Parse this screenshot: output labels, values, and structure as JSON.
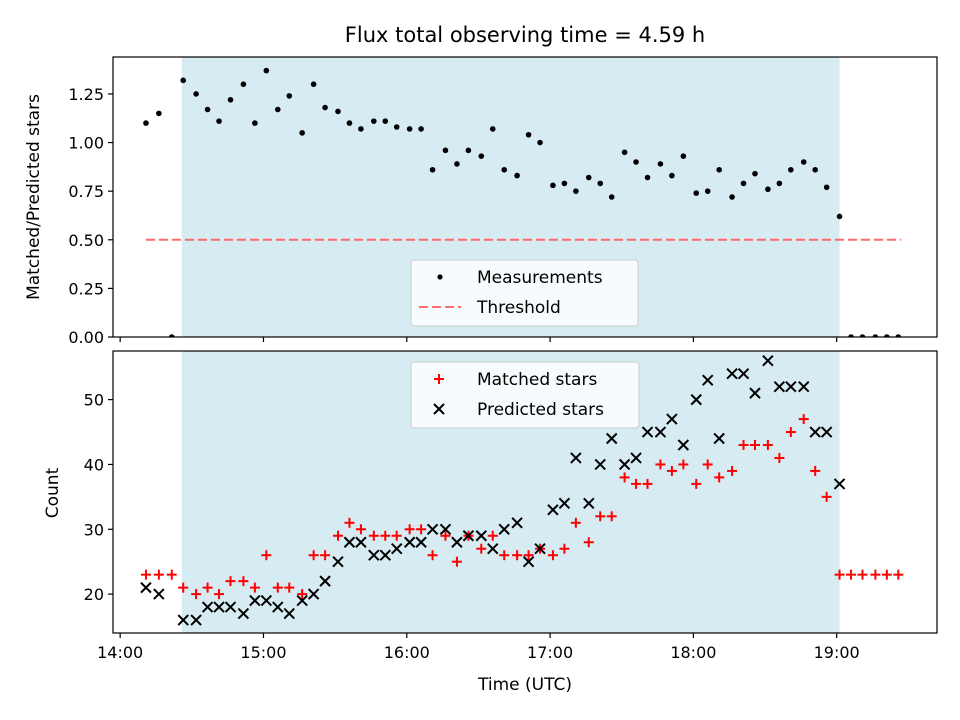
{
  "chart_data": {
    "title": "Flux total observing time = 4.59 h",
    "xlabel": "Time (UTC)",
    "x_unit": "hours since 14:00 UTC",
    "xlim": [
      -0.05,
      5.7
    ],
    "x_ticks": [
      {
        "value": 0,
        "label": "14:00"
      },
      {
        "value": 1,
        "label": "15:00"
      },
      {
        "value": 2,
        "label": "16:00"
      },
      {
        "value": 3,
        "label": "17:00"
      },
      {
        "value": 4,
        "label": "18:00"
      },
      {
        "value": 5,
        "label": "19:00"
      }
    ],
    "observing_span": {
      "start": 0.43,
      "end": 5.02,
      "color": "#add8e6"
    },
    "panels": [
      {
        "id": "ratio",
        "type": "scatter",
        "ylabel": "Matched/Predicted stars",
        "ylim": [
          0,
          1.44
        ],
        "y_ticks": [
          {
            "value": 0,
            "label": "0.00"
          },
          {
            "value": 0.25,
            "label": "0.25"
          },
          {
            "value": 0.5,
            "label": "0.50"
          },
          {
            "value": 0.75,
            "label": "0.75"
          },
          {
            "value": 1.0,
            "label": "1.00"
          },
          {
            "value": 1.25,
            "label": "1.25"
          }
        ],
        "threshold": {
          "label": "Threshold",
          "value": 0.5,
          "x_start": 0.18,
          "x_end": 5.45,
          "color": "#ff6b6b"
        },
        "measurements_label": "Measurements",
        "measurements": [
          [
            0.18,
            1.1
          ],
          [
            0.27,
            1.15
          ],
          [
            0.36,
            0.0
          ],
          [
            0.44,
            1.32
          ],
          [
            0.53,
            1.25
          ],
          [
            0.61,
            1.17
          ],
          [
            0.69,
            1.11
          ],
          [
            0.77,
            1.22
          ],
          [
            0.86,
            1.3
          ],
          [
            0.94,
            1.1
          ],
          [
            1.02,
            1.37
          ],
          [
            1.1,
            1.17
          ],
          [
            1.18,
            1.24
          ],
          [
            1.27,
            1.05
          ],
          [
            1.35,
            1.3
          ],
          [
            1.43,
            1.18
          ],
          [
            1.52,
            1.16
          ],
          [
            1.6,
            1.1
          ],
          [
            1.68,
            1.07
          ],
          [
            1.77,
            1.11
          ],
          [
            1.85,
            1.11
          ],
          [
            1.93,
            1.08
          ],
          [
            2.02,
            1.07
          ],
          [
            2.1,
            1.07
          ],
          [
            2.18,
            0.86
          ],
          [
            2.27,
            0.96
          ],
          [
            2.35,
            0.89
          ],
          [
            2.43,
            0.96
          ],
          [
            2.52,
            0.93
          ],
          [
            2.6,
            1.07
          ],
          [
            2.68,
            0.86
          ],
          [
            2.77,
            0.83
          ],
          [
            2.85,
            1.04
          ],
          [
            2.93,
            1.0
          ],
          [
            3.02,
            0.78
          ],
          [
            3.1,
            0.79
          ],
          [
            3.18,
            0.75
          ],
          [
            3.27,
            0.82
          ],
          [
            3.35,
            0.79
          ],
          [
            3.43,
            0.72
          ],
          [
            3.52,
            0.95
          ],
          [
            3.6,
            0.9
          ],
          [
            3.68,
            0.82
          ],
          [
            3.77,
            0.89
          ],
          [
            3.85,
            0.83
          ],
          [
            3.93,
            0.93
          ],
          [
            4.02,
            0.74
          ],
          [
            4.1,
            0.75
          ],
          [
            4.18,
            0.86
          ],
          [
            4.27,
            0.72
          ],
          [
            4.35,
            0.79
          ],
          [
            4.43,
            0.84
          ],
          [
            4.52,
            0.76
          ],
          [
            4.6,
            0.79
          ],
          [
            4.68,
            0.86
          ],
          [
            4.77,
            0.9
          ],
          [
            4.85,
            0.86
          ],
          [
            4.93,
            0.77
          ],
          [
            5.02,
            0.62
          ],
          [
            5.1,
            0.0
          ],
          [
            5.18,
            0.0
          ],
          [
            5.27,
            0.0
          ],
          [
            5.35,
            0.0
          ],
          [
            5.43,
            0.0
          ]
        ],
        "legend_position": "lower-center"
      },
      {
        "id": "count",
        "type": "scatter",
        "ylabel": "Count",
        "ylim": [
          14,
          57.5
        ],
        "y_ticks": [
          {
            "value": 20,
            "label": "20"
          },
          {
            "value": 30,
            "label": "30"
          },
          {
            "value": 40,
            "label": "40"
          },
          {
            "value": 50,
            "label": "50"
          }
        ],
        "series": [
          {
            "name": "Matched stars",
            "marker": "+",
            "color": "#ff0000",
            "points": [
              [
                0.18,
                23
              ],
              [
                0.27,
                23
              ],
              [
                0.36,
                23
              ],
              [
                0.44,
                21
              ],
              [
                0.53,
                20
              ],
              [
                0.61,
                21
              ],
              [
                0.69,
                20
              ],
              [
                0.77,
                22
              ],
              [
                0.86,
                22
              ],
              [
                0.94,
                21
              ],
              [
                1.02,
                26
              ],
              [
                1.1,
                21
              ],
              [
                1.18,
                21
              ],
              [
                1.27,
                20
              ],
              [
                1.35,
                26
              ],
              [
                1.43,
                26
              ],
              [
                1.52,
                29
              ],
              [
                1.6,
                31
              ],
              [
                1.68,
                30
              ],
              [
                1.77,
                29
              ],
              [
                1.85,
                29
              ],
              [
                1.93,
                29
              ],
              [
                2.02,
                30
              ],
              [
                2.1,
                30
              ],
              [
                2.18,
                26
              ],
              [
                2.27,
                29
              ],
              [
                2.35,
                25
              ],
              [
                2.43,
                29
              ],
              [
                2.52,
                27
              ],
              [
                2.6,
                29
              ],
              [
                2.68,
                26
              ],
              [
                2.77,
                26
              ],
              [
                2.85,
                26
              ],
              [
                2.93,
                27
              ],
              [
                3.02,
                26
              ],
              [
                3.1,
                27
              ],
              [
                3.18,
                31
              ],
              [
                3.27,
                28
              ],
              [
                3.35,
                32
              ],
              [
                3.43,
                32
              ],
              [
                3.52,
                38
              ],
              [
                3.6,
                37
              ],
              [
                3.68,
                37
              ],
              [
                3.77,
                40
              ],
              [
                3.85,
                39
              ],
              [
                3.93,
                40
              ],
              [
                4.02,
                37
              ],
              [
                4.1,
                40
              ],
              [
                4.18,
                38
              ],
              [
                4.27,
                39
              ],
              [
                4.35,
                43
              ],
              [
                4.43,
                43
              ],
              [
                4.52,
                43
              ],
              [
                4.6,
                41
              ],
              [
                4.68,
                45
              ],
              [
                4.77,
                47
              ],
              [
                4.85,
                39
              ],
              [
                4.93,
                35
              ],
              [
                5.02,
                23
              ],
              [
                5.1,
                23
              ],
              [
                5.18,
                23
              ],
              [
                5.27,
                23
              ],
              [
                5.35,
                23
              ],
              [
                5.43,
                23
              ]
            ]
          },
          {
            "name": "Predicted stars",
            "marker": "x",
            "color": "#000000",
            "points": [
              [
                0.18,
                21
              ],
              [
                0.27,
                20
              ],
              [
                0.44,
                16
              ],
              [
                0.53,
                16
              ],
              [
                0.61,
                18
              ],
              [
                0.69,
                18
              ],
              [
                0.77,
                18
              ],
              [
                0.86,
                17
              ],
              [
                0.94,
                19
              ],
              [
                1.02,
                19
              ],
              [
                1.1,
                18
              ],
              [
                1.18,
                17
              ],
              [
                1.27,
                19
              ],
              [
                1.35,
                20
              ],
              [
                1.43,
                22
              ],
              [
                1.52,
                25
              ],
              [
                1.6,
                28
              ],
              [
                1.68,
                28
              ],
              [
                1.77,
                26
              ],
              [
                1.85,
                26
              ],
              [
                1.93,
                27
              ],
              [
                2.02,
                28
              ],
              [
                2.1,
                28
              ],
              [
                2.18,
                30
              ],
              [
                2.27,
                30
              ],
              [
                2.35,
                28
              ],
              [
                2.43,
                29
              ],
              [
                2.52,
                29
              ],
              [
                2.6,
                27
              ],
              [
                2.68,
                30
              ],
              [
                2.77,
                31
              ],
              [
                2.85,
                25
              ],
              [
                2.93,
                27
              ],
              [
                3.02,
                33
              ],
              [
                3.1,
                34
              ],
              [
                3.18,
                41
              ],
              [
                3.27,
                34
              ],
              [
                3.35,
                40
              ],
              [
                3.43,
                44
              ],
              [
                3.52,
                40
              ],
              [
                3.6,
                41
              ],
              [
                3.68,
                45
              ],
              [
                3.77,
                45
              ],
              [
                3.85,
                47
              ],
              [
                3.93,
                43
              ],
              [
                4.02,
                50
              ],
              [
                4.1,
                53
              ],
              [
                4.18,
                44
              ],
              [
                4.27,
                54
              ],
              [
                4.35,
                54
              ],
              [
                4.43,
                51
              ],
              [
                4.52,
                56
              ],
              [
                4.6,
                52
              ],
              [
                4.68,
                52
              ],
              [
                4.77,
                52
              ],
              [
                4.85,
                45
              ],
              [
                4.93,
                45
              ],
              [
                5.02,
                37
              ]
            ]
          }
        ],
        "legend_position": "upper-center"
      }
    ]
  }
}
